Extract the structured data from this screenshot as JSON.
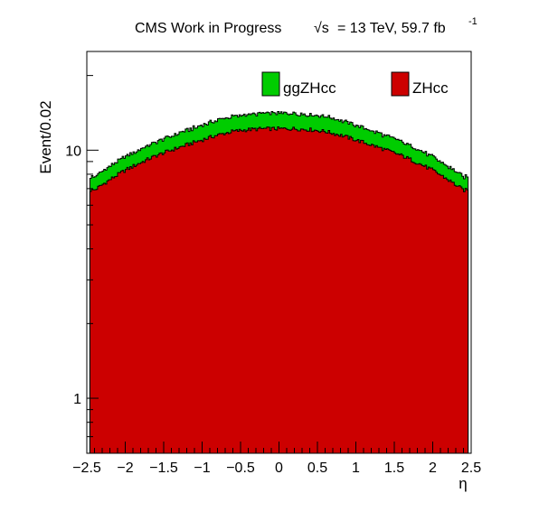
{
  "header": {
    "experiment": "CMS Work in Progress",
    "sqrt_symbol": "√s",
    "energy_lumi": "= 13 TeV, 59.7 fb",
    "lumi_exponent": "-1"
  },
  "chart_data": {
    "type": "histogram",
    "stacked": true,
    "ylabel": "Event/0.02",
    "xlabel": "η",
    "xlim": [
      -2.5,
      2.5
    ],
    "ylim": [
      0.6,
      25
    ],
    "yscale": "log",
    "bin_width": 0.02,
    "x_ticks": [
      "−2.5",
      "−2",
      "−1.5",
      "−1",
      "−0.5",
      "0",
      "0.5",
      "1",
      "1.5",
      "2",
      "2.5"
    ],
    "x_tick_values": [
      -2.5,
      -2,
      -1.5,
      -1,
      -0.5,
      0,
      0.5,
      1,
      1.5,
      2,
      2.5
    ],
    "y_ticks": [
      "1",
      "10"
    ],
    "y_tick_values": [
      1,
      10
    ],
    "series": [
      {
        "name": "ZHcc",
        "color": "#cc0000",
        "x": [
          -2.4,
          -2.2,
          -2.0,
          -1.8,
          -1.6,
          -1.4,
          -1.2,
          -1.0,
          -0.8,
          -0.6,
          -0.4,
          -0.2,
          0.0,
          0.2,
          0.4,
          0.6,
          0.8,
          1.0,
          1.2,
          1.4,
          1.6,
          1.8,
          2.0,
          2.2,
          2.4
        ],
        "values": [
          6.9,
          7.6,
          8.3,
          8.9,
          9.5,
          10.0,
          10.5,
          11.0,
          11.5,
          11.9,
          12.1,
          12.2,
          12.2,
          12.2,
          12.1,
          11.9,
          11.5,
          11.0,
          10.5,
          10.0,
          9.5,
          8.9,
          8.3,
          7.6,
          6.9
        ]
      },
      {
        "name": "ggZHcc",
        "color": "#00cc00",
        "x": [
          -2.4,
          -2.2,
          -2.0,
          -1.8,
          -1.6,
          -1.4,
          -1.2,
          -1.0,
          -0.8,
          -0.6,
          -0.4,
          -0.2,
          0.0,
          0.2,
          0.4,
          0.6,
          0.8,
          1.0,
          1.2,
          1.4,
          1.6,
          1.8,
          2.0,
          2.2,
          2.4
        ],
        "values": [
          0.9,
          1.0,
          1.1,
          1.2,
          1.3,
          1.4,
          1.5,
          1.6,
          1.7,
          1.8,
          1.8,
          1.9,
          1.9,
          1.9,
          1.8,
          1.8,
          1.7,
          1.6,
          1.5,
          1.4,
          1.3,
          1.2,
          1.1,
          1.0,
          0.9
        ]
      }
    ],
    "legend": [
      {
        "label": "ggZHcc",
        "color": "#00cc00"
      },
      {
        "label": "ZHcc",
        "color": "#cc0000"
      }
    ],
    "legend_placement": "top-center",
    "grid": false
  }
}
